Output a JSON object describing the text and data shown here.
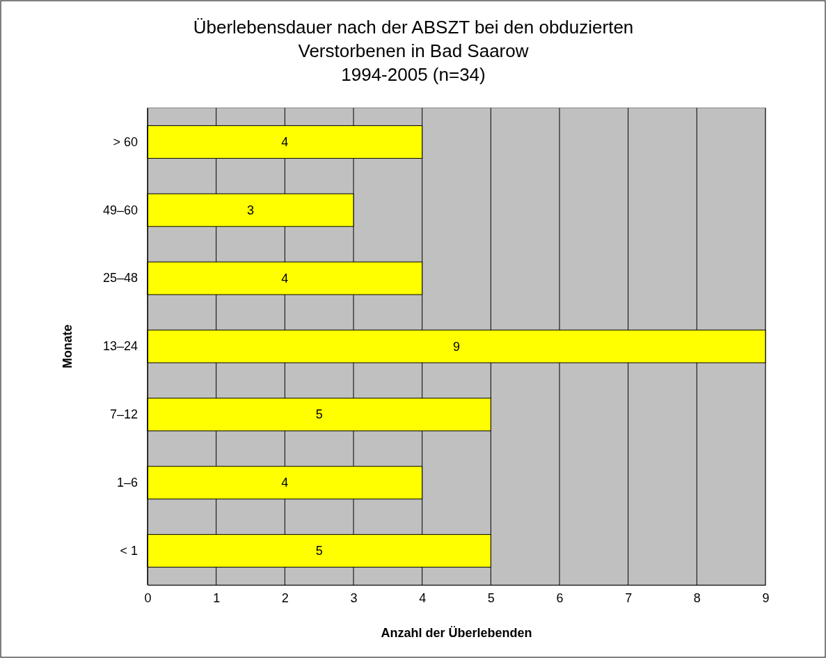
{
  "chart_data": {
    "type": "bar",
    "orientation": "horizontal",
    "title": "Überlebensdauer nach der ABSZT bei den obduzierten\nVerstorbenen in Bad Saarow\n1994-2005 (n=34)",
    "xlabel": "Anzahl der Überlebenden",
    "ylabel": "Monate",
    "categories": [
      "> 60",
      "49–60",
      "25–48",
      "13–24",
      "7–12",
      "1–6",
      "< 1"
    ],
    "values": [
      4,
      3,
      4,
      9,
      5,
      4,
      5
    ],
    "color": "#ffff00",
    "xlim": [
      0,
      9
    ],
    "xticks": [
      0,
      1,
      2,
      3,
      4,
      5,
      6,
      7,
      8,
      9
    ],
    "grid": "x",
    "data_labels": true
  }
}
